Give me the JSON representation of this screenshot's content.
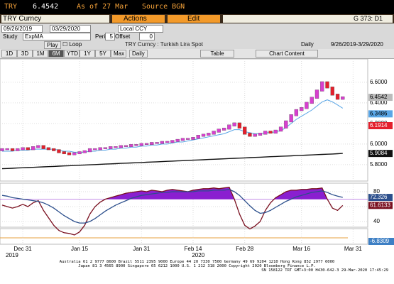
{
  "header": {
    "ticker": "TRY",
    "price": "6.4542",
    "as_of": "As of 27 Mar",
    "source": "Source BGN"
  },
  "toolbar": {
    "security": "TRY Curncy",
    "actions": "Actions",
    "edit": "Edit",
    "page": "G 373: D1"
  },
  "range": {
    "start": "09/26/2019",
    "end": "03/29/2020",
    "currency": "Local CCY"
  },
  "study": {
    "label": "Study",
    "name": "ExpMA",
    "period_label": "Period",
    "period": "5",
    "offset_label": "Offset",
    "offset": "0"
  },
  "playback": {
    "play": "Play",
    "loop": "Loop",
    "title": "TRY Curncy : Turkish Lira Spot",
    "frequency": "Daily",
    "span": "9/26/2019-3/29/2020"
  },
  "periods": {
    "buttons": [
      "1D",
      "3D",
      "1M",
      "6M",
      "YTD",
      "1Y",
      "5Y",
      "Max"
    ],
    "active": "6M",
    "frequency": "Daily",
    "table": "Table",
    "chart_content": "Chart Content"
  },
  "chart_data": {
    "type": "candlestick",
    "categories": [
      null,
      null,
      null,
      null,
      "Dec 31",
      null,
      null,
      null,
      null,
      null,
      null,
      null,
      null,
      null,
      null,
      "Jan 15",
      null,
      null,
      null,
      null,
      null,
      null,
      null,
      null,
      null,
      null,
      null,
      "Jan 31",
      null,
      null,
      null,
      null,
      null,
      null,
      null,
      null,
      null,
      "Feb 14",
      null,
      null,
      null,
      null,
      null,
      null,
      null,
      null,
      null,
      "Feb 28",
      null,
      null,
      null,
      null,
      null,
      null,
      null,
      null,
      null,
      null,
      "Mar 16",
      null,
      null,
      null,
      null,
      null,
      null,
      null,
      null,
      null,
      "Mar 31"
    ],
    "year_labels": [
      "2019",
      "2020"
    ],
    "open": [
      5.94,
      5.95,
      5.95,
      5.94,
      5.95,
      5.96,
      5.95,
      5.97,
      5.98,
      5.96,
      5.95,
      5.94,
      5.92,
      5.91,
      5.9,
      5.91,
      5.92,
      5.93,
      5.95,
      5.95,
      5.96,
      5.96,
      5.97,
      5.97,
      5.98,
      5.98,
      5.99,
      5.99,
      6.0,
      6.0,
      6.01,
      6.01,
      6.02,
      6.02,
      6.03,
      6.04,
      6.05,
      6.05,
      6.06,
      6.08,
      6.09,
      6.1,
      6.12,
      6.14,
      6.15,
      6.18,
      6.2,
      6.16,
      6.1,
      6.08,
      6.09,
      6.1,
      6.12,
      6.11,
      6.13,
      6.16,
      6.22,
      6.28,
      6.33,
      6.35,
      6.4,
      6.45,
      6.52,
      6.6,
      6.55,
      6.48,
      6.44,
      null,
      null
    ],
    "close": [
      5.95,
      5.95,
      5.94,
      5.95,
      5.96,
      5.95,
      5.97,
      5.98,
      5.96,
      5.95,
      5.94,
      5.92,
      5.91,
      5.9,
      5.91,
      5.92,
      5.93,
      5.95,
      5.95,
      5.96,
      5.96,
      5.97,
      5.97,
      5.98,
      5.98,
      5.99,
      5.99,
      6.0,
      6.0,
      6.01,
      6.01,
      6.02,
      6.02,
      6.03,
      6.04,
      6.05,
      6.05,
      6.06,
      6.08,
      6.09,
      6.1,
      6.12,
      6.14,
      6.15,
      6.18,
      6.2,
      6.16,
      6.1,
      6.08,
      6.09,
      6.1,
      6.12,
      6.11,
      6.13,
      6.16,
      6.22,
      6.28,
      6.33,
      6.35,
      6.4,
      6.45,
      6.52,
      6.6,
      6.55,
      6.48,
      6.44,
      6.4542,
      null,
      null
    ],
    "up_color": "#d83fcf",
    "down_color": "#e3202c",
    "ma_fast": {
      "color": "#5aa6e6",
      "values": [
        5.93,
        5.93,
        5.93,
        5.94,
        5.94,
        5.94,
        5.95,
        5.95,
        5.95,
        5.95,
        5.95,
        5.94,
        5.93,
        5.93,
        5.92,
        5.92,
        5.92,
        5.93,
        5.93,
        5.94,
        5.94,
        5.95,
        5.95,
        5.96,
        5.96,
        5.97,
        5.97,
        5.98,
        5.98,
        5.99,
        5.99,
        6.0,
        6.0,
        6.01,
        6.02,
        6.02,
        6.03,
        6.04,
        6.05,
        6.06,
        6.07,
        6.08,
        6.09,
        6.1,
        6.12,
        6.14,
        6.14,
        6.12,
        6.11,
        6.1,
        6.1,
        6.11,
        6.11,
        6.12,
        6.13,
        6.16,
        6.2,
        6.24,
        6.27,
        6.3,
        6.33,
        6.37,
        6.41,
        6.43,
        6.41,
        6.38,
        6.3486,
        null,
        null
      ]
    },
    "ma_slow": {
      "color": "#111111",
      "values": [
        5.76,
        5.762,
        5.764,
        5.767,
        5.769,
        5.771,
        5.773,
        5.776,
        5.778,
        5.78,
        5.782,
        5.785,
        5.787,
        5.789,
        5.791,
        5.794,
        5.796,
        5.798,
        5.8,
        5.803,
        5.805,
        5.807,
        5.809,
        5.812,
        5.814,
        5.816,
        5.818,
        5.82,
        5.823,
        5.825,
        5.827,
        5.829,
        5.832,
        5.834,
        5.836,
        5.838,
        5.841,
        5.843,
        5.845,
        5.847,
        5.85,
        5.852,
        5.854,
        5.856,
        5.859,
        5.861,
        5.863,
        5.865,
        5.868,
        5.87,
        5.872,
        5.874,
        5.877,
        5.879,
        5.881,
        5.883,
        5.885,
        5.888,
        5.89,
        5.892,
        5.894,
        5.897,
        5.899,
        5.901,
        5.903,
        5.906,
        5.9084,
        null,
        null
      ]
    },
    "ylim": [
      5.64,
      6.71
    ],
    "yticks": [
      {
        "value": 5.8,
        "label": "5.8000"
      },
      {
        "value": 6.0,
        "label": "6.0000"
      },
      {
        "value": 6.2,
        "label": "6.2000"
      },
      {
        "value": 6.4,
        "label": "6.4000"
      },
      {
        "value": 6.6,
        "label": "6.6000"
      }
    ],
    "right_labels": [
      "6.1914"
    ],
    "grid": true,
    "rsi": {
      "ylim": [
        32.4,
        91.4
      ],
      "yticks": [
        40,
        60,
        80
      ],
      "overbought": 70,
      "fill_color": "#8a1fd0",
      "lines": [
        {
          "color": "#7a1020",
          "values": [
            62,
            60,
            58,
            60,
            63,
            60,
            65,
            68,
            55,
            45,
            35,
            28,
            25,
            24,
            22,
            26,
            35,
            50,
            60,
            66,
            70,
            72,
            74,
            76,
            78,
            79,
            80,
            81,
            80,
            82,
            81,
            80,
            82,
            83,
            82,
            81,
            80,
            82,
            83,
            84,
            84,
            85,
            84,
            85,
            86,
            70,
            50,
            35,
            30,
            34,
            40,
            55,
            65,
            72,
            76,
            80,
            82,
            82,
            83,
            83,
            84,
            84,
            85,
            70,
            58,
            55,
            61.6133,
            null,
            null
          ]
        },
        {
          "color": "#2c4f8c",
          "values": [
            75,
            74,
            72,
            71,
            70,
            69,
            68,
            67,
            65,
            62,
            58,
            53,
            48,
            44,
            40,
            38,
            38,
            40,
            44,
            49,
            54,
            58,
            62,
            65,
            68,
            71,
            73,
            75,
            76,
            77,
            78,
            79,
            79,
            80,
            80,
            80,
            80,
            80,
            81,
            81,
            81,
            82,
            82,
            82,
            83,
            80,
            75,
            68,
            61,
            55,
            51,
            52,
            55,
            59,
            63,
            67,
            70,
            73,
            75,
            77,
            79,
            80,
            81,
            79,
            76,
            74,
            72.326,
            null,
            null
          ]
        }
      ]
    },
    "macd_label": "-6.8309"
  },
  "footer": [
    "Australia 61 2 9777 8600 Brazil 5511 2395 9000 Europe 44 20 7330 7500 Germany 49 69 9204 1210 Hong Kong 852 2977 6000",
    "Japan 81 3 4565 8900 Singapore 65 6212 1000 U.S. 1 212 318 2000 Copyright 2020 Bloomberg Finance L.P.",
    "SN 158122 TRT GMT+3:00 H430-642-3 29-Mar-2020 17:45:29"
  ]
}
